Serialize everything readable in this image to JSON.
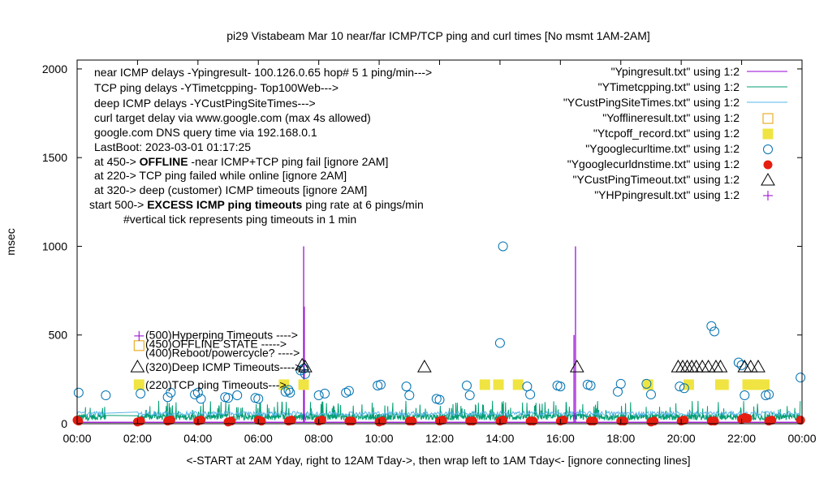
{
  "chart_data": {
    "type": "line",
    "title": "pi29 Vistabeam Mar 10  near/far ICMP/TCP ping and curl times [No msmt 1AM-2AM]",
    "xlabel": "<-START at 2AM Yday, right to 12AM Tday->, then wrap left to 1AM Tday<- [ignore connecting lines]",
    "ylabel": "msec",
    "xlim": [
      0,
      24
    ],
    "ylim": [
      0,
      2050
    ],
    "xticks": [
      {
        "v": 0,
        "label": "00:00"
      },
      {
        "v": 2,
        "label": "02:00"
      },
      {
        "v": 4,
        "label": "04:00"
      },
      {
        "v": 6,
        "label": "06:00"
      },
      {
        "v": 8,
        "label": "08:00"
      },
      {
        "v": 10,
        "label": "10:00"
      },
      {
        "v": 12,
        "label": "12:00"
      },
      {
        "v": 14,
        "label": "14:00"
      },
      {
        "v": 16,
        "label": "16:00"
      },
      {
        "v": 18,
        "label": "18:00"
      },
      {
        "v": 20,
        "label": "20:00"
      },
      {
        "v": 22,
        "label": "22:00"
      },
      {
        "v": 24,
        "label": "00:00"
      }
    ],
    "yticks": [
      {
        "v": 0,
        "label": "0"
      },
      {
        "v": 500,
        "label": "500"
      },
      {
        "v": 1000,
        "label": "1000"
      },
      {
        "v": 1500,
        "label": "1500"
      },
      {
        "v": 2000,
        "label": "2000"
      }
    ],
    "grid": false,
    "legend_position": "top-right",
    "info_lines": [
      "near ICMP delays -Ypingresult- 100.126.0.65 hop# 5 1 ping/min--->",
      "TCP ping delays -YTimetcpping- Top100Web--->",
      "deep ICMP delays -YCustPingSiteTimes--->",
      "curl target delay via www.google.com (max 4s allowed)",
      "google.com DNS query time via 192.168.0.1",
      "LastBoot: 2023-03-01 01:17:25"
    ],
    "state_lines": [
      {
        "prefix": "at 450-> ",
        "bold": "OFFLINE",
        "rest": " -near ICMP+TCP ping fail [ignore 2AM]"
      },
      {
        "prefix": "at 220-> TCP ping failed while online [ignore 2AM]",
        "bold": "",
        "rest": ""
      },
      {
        "prefix": "at 320-> deep (customer) ICMP timeouts [ignore 2AM]",
        "bold": "",
        "rest": ""
      },
      {
        "prefix": "start 500-> ",
        "bold": "EXCESS ICMP ping timeouts",
        "rest": "  ping rate at 6 pings/min"
      }
    ],
    "tick_note": "#vertical tick represents ping timeouts in 1 min",
    "level_labels": [
      {
        "y": 500,
        "label": "(500)Hyperping Timeouts ---->"
      },
      {
        "y": 450,
        "label": "(450)OFFLINE STATE ----->"
      },
      {
        "y": 400,
        "label": "(400)Reboot/powercycle? ---->"
      },
      {
        "y": 320,
        "label": "(320)Deep ICMP Timeouts---->"
      },
      {
        "y": 220,
        "label": "(220)TCP ping Timeouts--->"
      }
    ],
    "series": [
      {
        "name": "\"Ypingresult.txt\" using 1:2",
        "style": "line",
        "color": "#9400d3"
      },
      {
        "name": "\"YTimetcpping.txt\" using 1:2",
        "style": "line",
        "color": "#009e73"
      },
      {
        "name": "\"YCustPingSiteTimes.txt\" using 1:2",
        "style": "line",
        "color": "#56b4e9"
      },
      {
        "name": "\"Yofflineresult.txt\" using 1:2",
        "style": "open-square",
        "color": "#e69f00"
      },
      {
        "name": "\"Ytcpoff_record.txt\" using 1:2",
        "style": "filled-square",
        "color": "#f0e442"
      },
      {
        "name": "\"Ygooglecurltime.txt\" using 1:2",
        "style": "open-circle",
        "color": "#0072b2"
      },
      {
        "name": "\"Ygooglecurldnstime.txt\" using 1:2",
        "style": "filled-circle",
        "color": "#e51e10"
      },
      {
        "name": "\"YCustPingTimeout.txt\" using 1:2",
        "style": "open-triangle",
        "color": "#000000"
      },
      {
        "name": "\"YHPpingresult.txt\" using 1:2",
        "style": "plus",
        "color": "#9400d3"
      }
    ],
    "ping_spikes": [
      {
        "x": 7.5,
        "y": 1000
      },
      {
        "x": 7.52,
        "y": 660
      },
      {
        "x": 16.5,
        "y": 1000
      },
      {
        "x": 16.45,
        "y": 500
      }
    ],
    "tcp_offline_points": [
      [
        2.05,
        220
      ],
      [
        6.85,
        220
      ],
      [
        7.5,
        220
      ],
      [
        13.5,
        220
      ],
      [
        13.95,
        220
      ],
      [
        14.6,
        220
      ],
      [
        18.9,
        220
      ],
      [
        20.25,
        220
      ],
      [
        21.3,
        220
      ],
      [
        21.4,
        220
      ],
      [
        22.2,
        220
      ],
      [
        22.4,
        220
      ],
      [
        22.6,
        220
      ],
      [
        22.75,
        220
      ]
    ],
    "offline_points": [
      [
        2.05,
        440
      ]
    ],
    "hp_points": [
      [
        2.05,
        495
      ]
    ],
    "curl_points": [
      [
        0.05,
        175
      ],
      [
        0.95,
        160
      ],
      [
        2.1,
        170
      ],
      [
        3.0,
        150
      ],
      [
        3.1,
        175
      ],
      [
        3.9,
        165
      ],
      [
        4.0,
        175
      ],
      [
        4.1,
        140
      ],
      [
        4.9,
        150
      ],
      [
        5.0,
        145
      ],
      [
        5.3,
        160
      ],
      [
        5.9,
        145
      ],
      [
        6.0,
        140
      ],
      [
        6.9,
        180
      ],
      [
        7.0,
        190
      ],
      [
        7.05,
        175
      ],
      [
        7.4,
        300
      ],
      [
        7.5,
        310
      ],
      [
        7.55,
        280
      ],
      [
        8.0,
        160
      ],
      [
        8.2,
        170
      ],
      [
        8.9,
        175
      ],
      [
        9.0,
        185
      ],
      [
        9.95,
        215
      ],
      [
        10.05,
        220
      ],
      [
        10.9,
        210
      ],
      [
        11.0,
        160
      ],
      [
        11.9,
        140
      ],
      [
        12.0,
        135
      ],
      [
        12.9,
        215
      ],
      [
        13.0,
        160
      ],
      [
        14.0,
        455
      ],
      [
        14.1,
        1000
      ],
      [
        14.9,
        210
      ],
      [
        15.0,
        165
      ],
      [
        15.9,
        215
      ],
      [
        16.0,
        210
      ],
      [
        16.9,
        220
      ],
      [
        17.0,
        215
      ],
      [
        17.9,
        180
      ],
      [
        18.0,
        225
      ],
      [
        18.85,
        225
      ],
      [
        19.0,
        165
      ],
      [
        19.95,
        210
      ],
      [
        20.1,
        200
      ],
      [
        21.0,
        550
      ],
      [
        21.1,
        520
      ],
      [
        21.9,
        345
      ],
      [
        22.0,
        330
      ],
      [
        22.1,
        160
      ],
      [
        22.8,
        160
      ],
      [
        22.9,
        165
      ],
      [
        23.95,
        260
      ]
    ],
    "dns_points": [
      [
        0.0,
        20
      ],
      [
        0.05,
        15
      ],
      [
        2.0,
        10
      ],
      [
        2.1,
        15
      ],
      [
        3.0,
        15
      ],
      [
        3.1,
        20
      ],
      [
        4.0,
        15
      ],
      [
        4.1,
        20
      ],
      [
        5.0,
        10
      ],
      [
        5.1,
        15
      ],
      [
        6.0,
        20
      ],
      [
        6.1,
        15
      ],
      [
        7.0,
        15
      ],
      [
        7.1,
        20
      ],
      [
        8.0,
        15
      ],
      [
        8.1,
        20
      ],
      [
        9.0,
        15
      ],
      [
        9.1,
        15
      ],
      [
        10.0,
        10
      ],
      [
        10.1,
        15
      ],
      [
        11.0,
        15
      ],
      [
        11.1,
        15
      ],
      [
        12.0,
        15
      ],
      [
        12.1,
        20
      ],
      [
        13.0,
        15
      ],
      [
        13.1,
        15
      ],
      [
        14.0,
        15
      ],
      [
        14.1,
        20
      ],
      [
        15.0,
        15
      ],
      [
        15.1,
        15
      ],
      [
        16.0,
        15
      ],
      [
        16.1,
        20
      ],
      [
        17.0,
        15
      ],
      [
        17.1,
        15
      ],
      [
        18.0,
        15
      ],
      [
        18.1,
        15
      ],
      [
        19.0,
        10
      ],
      [
        19.1,
        15
      ],
      [
        20.0,
        15
      ],
      [
        20.1,
        20
      ],
      [
        21.0,
        15
      ],
      [
        21.1,
        15
      ],
      [
        22.0,
        25
      ],
      [
        22.1,
        35
      ],
      [
        22.2,
        30
      ],
      [
        22.9,
        15
      ],
      [
        23.0,
        20
      ],
      [
        23.95,
        20
      ]
    ],
    "cust_timeout_points": [
      [
        2.0,
        320
      ],
      [
        7.45,
        330
      ],
      [
        7.55,
        320
      ],
      [
        11.5,
        320
      ],
      [
        16.55,
        320
      ],
      [
        19.9,
        320
      ],
      [
        20.05,
        320
      ],
      [
        20.2,
        320
      ],
      [
        20.35,
        320
      ],
      [
        20.5,
        320
      ],
      [
        20.7,
        320
      ],
      [
        20.9,
        320
      ],
      [
        21.15,
        320
      ],
      [
        21.3,
        320
      ],
      [
        22.1,
        320
      ],
      [
        22.3,
        320
      ],
      [
        22.55,
        320
      ]
    ]
  }
}
